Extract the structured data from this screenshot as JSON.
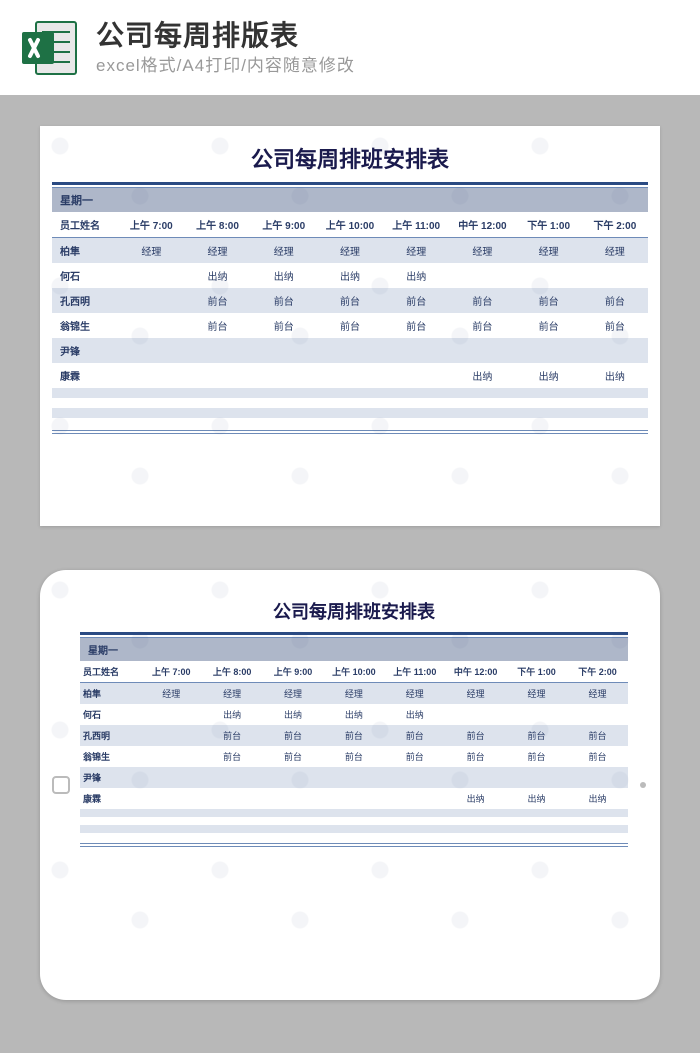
{
  "header": {
    "title": "公司每周排版表",
    "subtitle": "excel格式/A4打印/内容随意修改",
    "icon_name": "excel-icon",
    "icon_bg": "#1e7145",
    "icon_fg": "#ffffff"
  },
  "page_bg": "#b8b8b8",
  "sheet": {
    "title": "公司每周排班安排表",
    "title_color": "#1a1a4d",
    "title_fontsize": 22,
    "rule_color": "#2a4a82",
    "thin_rule_color": "#6e8bb8",
    "day_label": "星期一",
    "day_row_bg": "#aeb7c9",
    "text_color": "#2a3c66",
    "stripe_odd": "#dde3ed",
    "stripe_even": "#ffffff",
    "columns": [
      "员工姓名",
      "上午 7:00",
      "上午 8:00",
      "上午 9:00",
      "上午 10:00",
      "上午 11:00",
      "中午 12:00",
      "下午 1:00",
      "下午 2:00"
    ],
    "rows": [
      [
        "柏隼",
        "经理",
        "经理",
        "经理",
        "经理",
        "经理",
        "经理",
        "经理",
        "经理"
      ],
      [
        "何石",
        "",
        "出纳",
        "出纳",
        "出纳",
        "出纳",
        "",
        "",
        ""
      ],
      [
        "孔西明",
        "",
        "前台",
        "前台",
        "前台",
        "前台",
        "前台",
        "前台",
        "前台"
      ],
      [
        "翁锦生",
        "",
        "前台",
        "前台",
        "前台",
        "前台",
        "前台",
        "前台",
        "前台"
      ],
      [
        "尹锋",
        "",
        "",
        "",
        "",
        "",
        "",
        "",
        ""
      ],
      [
        "康霖",
        "",
        "",
        "",
        "",
        "",
        "出纳",
        "出纳",
        "出纳"
      ],
      [
        "",
        "",
        "",
        "",
        "",
        "",
        "",
        "",
        ""
      ],
      [
        "",
        "",
        "",
        "",
        "",
        "",
        "",
        "",
        ""
      ],
      [
        "",
        "",
        "",
        "",
        "",
        "",
        "",
        "",
        ""
      ],
      [
        "",
        "",
        "",
        "",
        "",
        "",
        "",
        "",
        ""
      ]
    ]
  },
  "tablet": {
    "frame_bg": "#ffffff",
    "border_radius": 26
  },
  "watermark": {
    "text": "包图网",
    "color": "#425a85",
    "opacity": 0.05
  }
}
